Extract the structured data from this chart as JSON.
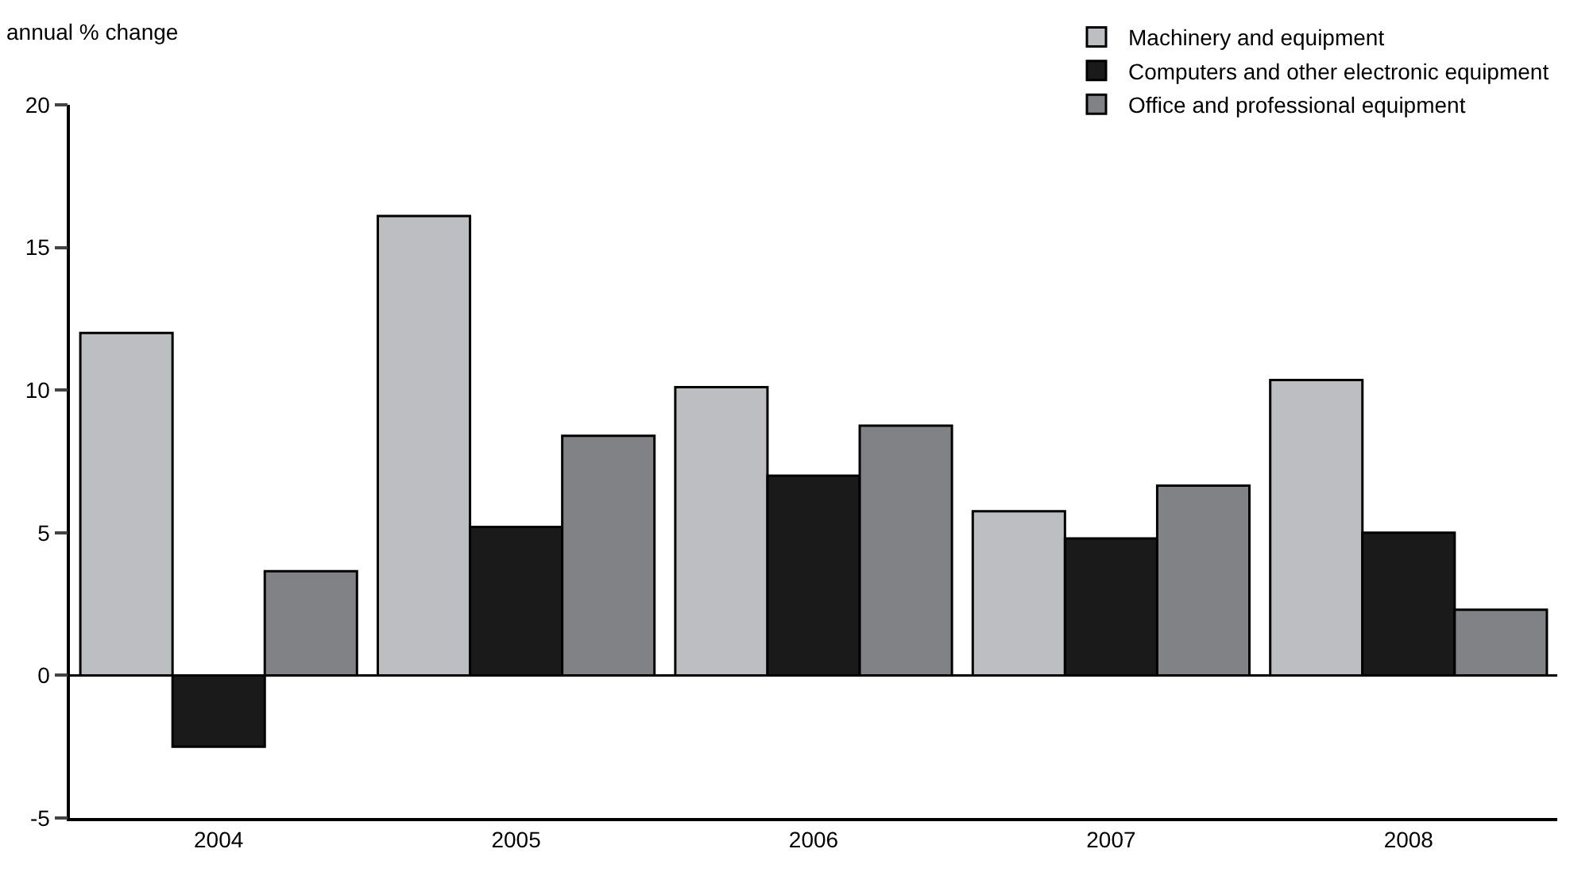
{
  "chart_data": {
    "type": "bar",
    "ylabel": "annual % change",
    "categories": [
      "2004",
      "2005",
      "2006",
      "2007",
      "2008"
    ],
    "series": [
      {
        "name": "Machinery and equipment",
        "color": "#bdbec2",
        "values": [
          12.0,
          16.1,
          10.1,
          5.75,
          10.35
        ]
      },
      {
        "name": "Computers and other electronic equipment",
        "color": "#1a1a1a",
        "values": [
          -2.5,
          5.2,
          7.0,
          4.8,
          5.0
        ]
      },
      {
        "name": "Office and professional equipment",
        "color": "#808285",
        "values": [
          3.65,
          8.4,
          8.75,
          6.65,
          2.3
        ]
      }
    ],
    "ylim": [
      -5,
      20
    ],
    "yticks": [
      -5,
      0,
      5,
      10,
      15,
      20
    ],
    "grid": false,
    "ref_lines": [
      {
        "axis": "y",
        "value": 0,
        "color": "#000000"
      }
    ],
    "legend": "top right"
  }
}
